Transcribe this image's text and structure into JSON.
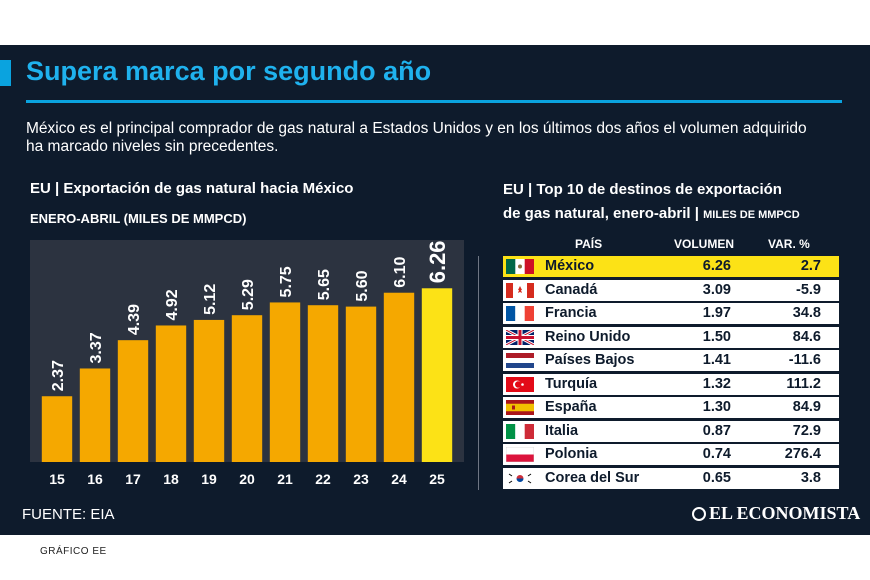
{
  "header": {
    "title": "Supera marca por segundo año",
    "subtitle": "México es el principal comprador de gas natural a Estados Unidos y en los últimos dos años el volumen adquirido ha marcado niveles sin precedentes."
  },
  "left_chart": {
    "heading": "EU  |  Exportación de gas natural hacia México",
    "subheading": "ENERO-ABRIL (MILES DE MMPCD)"
  },
  "chart_data": {
    "type": "bar",
    "categories": [
      "15",
      "16",
      "17",
      "18",
      "19",
      "20",
      "21",
      "22",
      "23",
      "24",
      "25"
    ],
    "values": [
      2.37,
      3.37,
      4.39,
      4.92,
      5.12,
      5.29,
      5.75,
      5.65,
      5.6,
      6.1,
      6.26
    ],
    "value_labels": [
      "2.37",
      "3.37",
      "4.39",
      "4.92",
      "5.12",
      "5.29",
      "5.75",
      "5.65",
      "5.60",
      "6.10",
      "6.26"
    ],
    "title": "Exportación de gas natural hacia México",
    "xlabel": "",
    "ylabel": "",
    "ylim": [
      0,
      8
    ],
    "grid": false,
    "colors": {
      "bar": "#f5a800",
      "highlight_bar": "#fce216",
      "label": "#ffffff"
    }
  },
  "right_table": {
    "heading_line1": "EU  |  Top 10 de destinos de exportación",
    "heading_line2": "de gas natural, enero-abril  |",
    "heading_units": "MILES DE MMPCD",
    "columns": {
      "country": "PAÍS",
      "volume": "VOLUMEN",
      "change": "VAR. %"
    },
    "rows": [
      {
        "flag": "mexico-flag",
        "country": "México",
        "volume": "6.26",
        "change": "2.7"
      },
      {
        "flag": "canada-flag",
        "country": "Canadá",
        "volume": "3.09",
        "change": "-5.9"
      },
      {
        "flag": "france-flag",
        "country": "Francia",
        "volume": "1.97",
        "change": "34.8"
      },
      {
        "flag": "uk-flag",
        "country": "Reino Unido",
        "volume": "1.50",
        "change": "84.6"
      },
      {
        "flag": "netherlands-flag",
        "country": "Países Bajos",
        "volume": "1.41",
        "change": "-11.6"
      },
      {
        "flag": "turkey-flag",
        "country": "Turquía",
        "volume": "1.32",
        "change": "111.2"
      },
      {
        "flag": "spain-flag",
        "country": "España",
        "volume": "1.30",
        "change": "84.9"
      },
      {
        "flag": "italy-flag",
        "country": "Italia",
        "volume": "0.87",
        "change": "72.9"
      },
      {
        "flag": "poland-flag",
        "country": "Polonia",
        "volume": "0.74",
        "change": "276.4"
      },
      {
        "flag": "south-korea-flag",
        "country": "Corea del Sur",
        "volume": "0.65",
        "change": "3.8"
      }
    ]
  },
  "footer": {
    "source": "FUENTE: EIA",
    "logo_text": "EL ECONOMISTA",
    "credit": "GRÁFICO EE"
  },
  "colors": {
    "background": "#0e1b2c",
    "accent": "#0aa3df",
    "title": "#1fb2ee",
    "highlight": "#fce216"
  }
}
